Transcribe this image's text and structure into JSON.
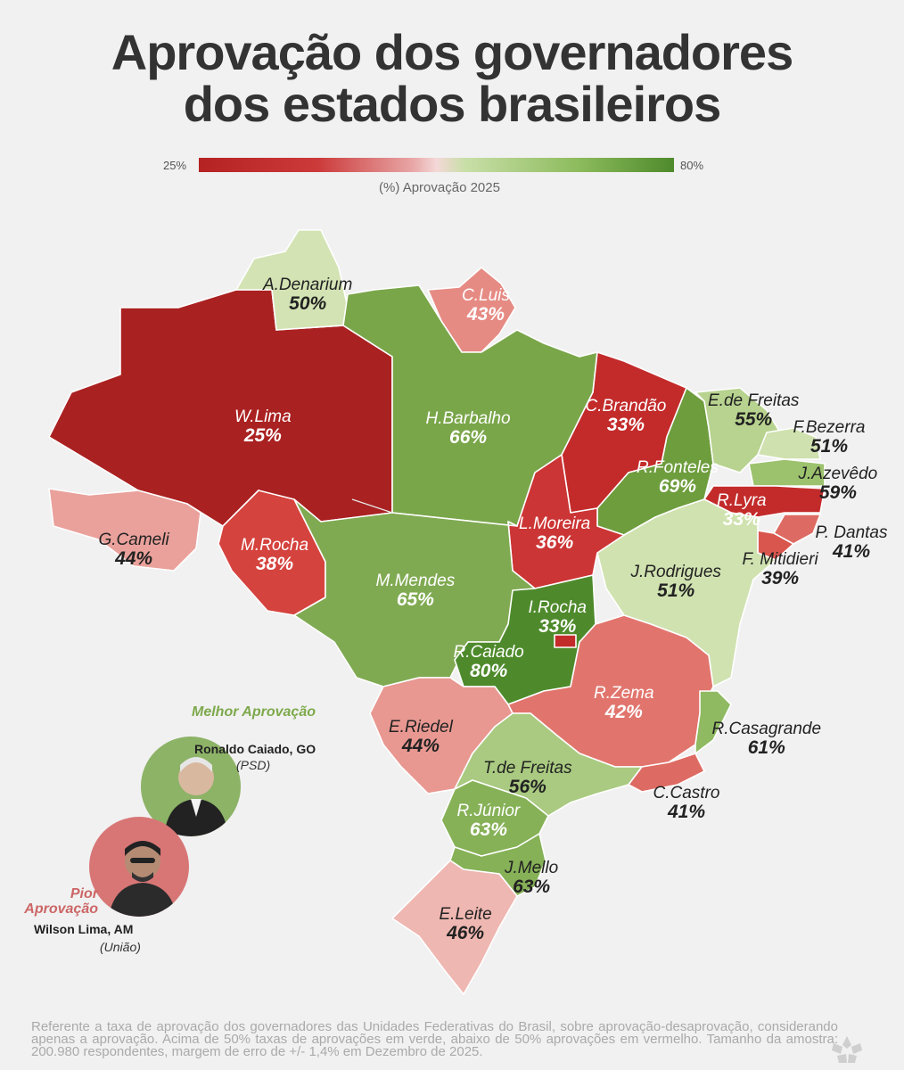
{
  "title": {
    "line1": "Aprovação dos governadores",
    "line2": "dos estados brasileiros"
  },
  "legend": {
    "min": "25%",
    "max": "80%",
    "caption": "(%) Aprovação 2025",
    "low_color": "#b42222",
    "high_color": "#4e8a2b"
  },
  "states": [
    {
      "uf": "RR",
      "name": "A.Denarium",
      "pct": "50%",
      "color": "#d3e3b4"
    },
    {
      "uf": "AP",
      "name": "C.Luis",
      "pct": "43%",
      "color": "#e68b84"
    },
    {
      "uf": "AM",
      "name": "W.Lima",
      "pct": "25%",
      "color": "#aa2121"
    },
    {
      "uf": "PA",
      "name": "H.Barbalho",
      "pct": "66%",
      "color": "#7aa64a"
    },
    {
      "uf": "MA",
      "name": "C.Brandão",
      "pct": "33%",
      "color": "#c32b2b"
    },
    {
      "uf": "PI",
      "name": "R.Fonteles",
      "pct": "69%",
      "color": "#6e9d3d"
    },
    {
      "uf": "CE",
      "name": "E.de Freitas",
      "pct": "55%",
      "color": "#b7d38f"
    },
    {
      "uf": "RN",
      "name": "F.Bezerra",
      "pct": "51%",
      "color": "#cfe1af"
    },
    {
      "uf": "PB",
      "name": "J.Azevêdo",
      "pct": "59%",
      "color": "#9dc26e"
    },
    {
      "uf": "PE",
      "name": "R.Lyra",
      "pct": "33%",
      "color": "#c32b2b"
    },
    {
      "uf": "AL",
      "name": "P. Dantas",
      "pct": "41%",
      "color": "#dd6b63"
    },
    {
      "uf": "SE",
      "name": "F. Mitidieri",
      "pct": "39%",
      "color": "#d9564f"
    },
    {
      "uf": "BA",
      "name": "J.Rodrigues",
      "pct": "51%",
      "color": "#d0e2b0"
    },
    {
      "uf": "TO",
      "name": "L.Moreira",
      "pct": "36%",
      "color": "#cc3535"
    },
    {
      "uf": "AC",
      "name": "G.Cameli",
      "pct": "44%",
      "color": "#eaa19b"
    },
    {
      "uf": "RO",
      "name": "M.Rocha",
      "pct": "38%",
      "color": "#d5433e"
    },
    {
      "uf": "MT",
      "name": "M.Mendes",
      "pct": "65%",
      "color": "#80aa52"
    },
    {
      "uf": "DF",
      "name": "I.Rocha",
      "pct": "33%",
      "color": "#c32b2b"
    },
    {
      "uf": "GO",
      "name": "R.Caiado",
      "pct": "80%",
      "color": "#4e8a2b"
    },
    {
      "uf": "MG",
      "name": "R.Zema",
      "pct": "42%",
      "color": "#e1756d"
    },
    {
      "uf": "ES",
      "name": "R.Casagrande",
      "pct": "61%",
      "color": "#90ba62"
    },
    {
      "uf": "MS",
      "name": "E.Riedel",
      "pct": "44%",
      "color": "#e89891"
    },
    {
      "uf": "SP",
      "name": "T.de Freitas",
      "pct": "56%",
      "color": "#a9ca80"
    },
    {
      "uf": "RJ",
      "name": "C.Castro",
      "pct": "41%",
      "color": "#dd6b63"
    },
    {
      "uf": "PR",
      "name": "R.Júnior",
      "pct": "63%",
      "color": "#86b157"
    },
    {
      "uf": "SC",
      "name": "J.Mello",
      "pct": "63%",
      "color": "#86b157"
    },
    {
      "uf": "RS",
      "name": "E.Leite",
      "pct": "46%",
      "color": "#efb7b1"
    }
  ],
  "best": {
    "caption": "Melhor Aprovação",
    "name": "Ronaldo Caiado, GO",
    "party": "(PSD)"
  },
  "worst": {
    "caption": "Pior Aprovação",
    "name": "Wilson Lima, AM",
    "party": "(União)"
  },
  "footnote": "Referente a taxa de aprovação dos governadores das Unidades Federativas do Brasil, sobre aprovação-desaprovação, considerando apenas a aprovação. Acima de 50% taxas de aprovações em verde, abaixo de 50% aprovações em vermelho. Tamanho da amostra: 200.980 respondentes, margem de erro de +/- 1,4% em Dezembro de 2025."
}
